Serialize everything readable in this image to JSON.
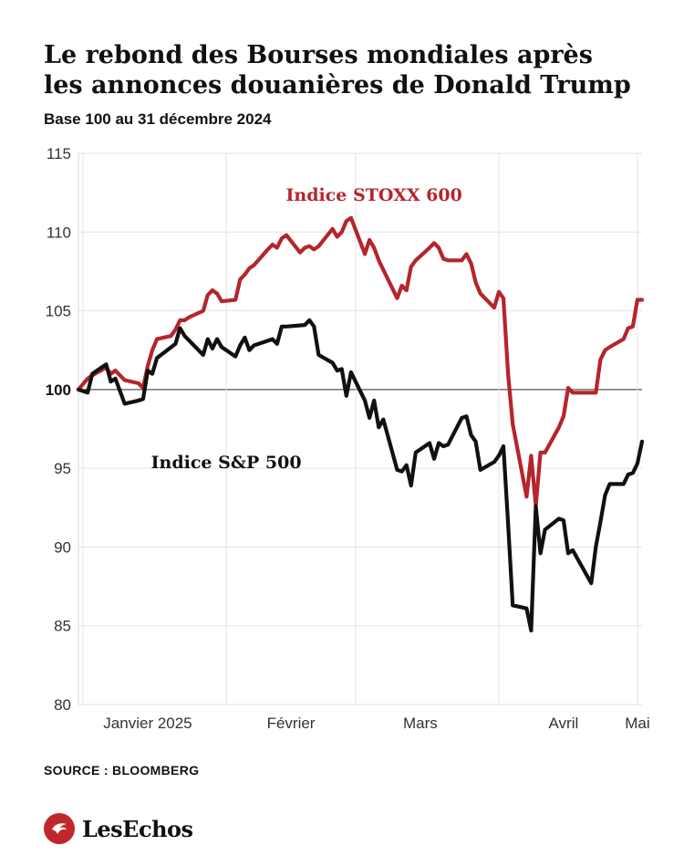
{
  "header": {
    "title_line1": "Le rebond des Bourses mondiales après",
    "title_line2": "les annonces douanières de Donald Trump",
    "subtitle": "Base 100 au 31 décembre 2024"
  },
  "footer": {
    "source": "SOURCE : BLOOMBERG",
    "logo_text": "LesEchos"
  },
  "chart_data": {
    "type": "line",
    "title": "Le rebond des Bourses mondiales après les annonces douanières de Donald Trump",
    "subtitle": "Base 100 au 31 décembre 2024",
    "xlabel": "",
    "ylabel": "",
    "ylim": [
      80,
      115
    ],
    "yticks": [
      80,
      85,
      90,
      95,
      100,
      105,
      110,
      115
    ],
    "baseline": 100,
    "x_range": [
      "2024-12-31",
      "2025-05-02"
    ],
    "month_ticks": [
      {
        "label": "Janvier 2025",
        "date": "2025-01-15"
      },
      {
        "label": "Février",
        "date": "2025-02-15"
      },
      {
        "label": "Mars",
        "date": "2025-03-15"
      },
      {
        "label": "Avril",
        "date": "2025-04-15"
      },
      {
        "label": "Mai",
        "date": "2025-05-01"
      }
    ],
    "month_separators": [
      "2025-01-01",
      "2025-02-01",
      "2025-03-01",
      "2025-04-01",
      "2025-05-01"
    ],
    "grid": true,
    "series": [
      {
        "name": "Indice STOXX 600",
        "color": "#b5252c",
        "points": [
          [
            "2024-12-31",
            100.0
          ],
          [
            "2025-01-02",
            100.7
          ],
          [
            "2025-01-03",
            100.9
          ],
          [
            "2025-01-06",
            101.4
          ],
          [
            "2025-01-07",
            101.0
          ],
          [
            "2025-01-08",
            101.2
          ],
          [
            "2025-01-09",
            100.9
          ],
          [
            "2025-01-10",
            100.6
          ],
          [
            "2025-01-13",
            100.4
          ],
          [
            "2025-01-14",
            100.1
          ],
          [
            "2025-01-15",
            101.5
          ],
          [
            "2025-01-16",
            102.5
          ],
          [
            "2025-01-17",
            103.2
          ],
          [
            "2025-01-20",
            103.4
          ],
          [
            "2025-01-21",
            103.8
          ],
          [
            "2025-01-22",
            104.4
          ],
          [
            "2025-01-23",
            104.4
          ],
          [
            "2025-01-24",
            104.6
          ],
          [
            "2025-01-27",
            105.0
          ],
          [
            "2025-01-28",
            106.0
          ],
          [
            "2025-01-29",
            106.3
          ],
          [
            "2025-01-30",
            106.1
          ],
          [
            "2025-01-31",
            105.6
          ],
          [
            "2025-02-03",
            105.7
          ],
          [
            "2025-02-04",
            107.0
          ],
          [
            "2025-02-05",
            107.3
          ],
          [
            "2025-02-06",
            107.7
          ],
          [
            "2025-02-07",
            107.9
          ],
          [
            "2025-02-10",
            108.9
          ],
          [
            "2025-02-11",
            109.2
          ],
          [
            "2025-02-12",
            109.0
          ],
          [
            "2025-02-13",
            109.6
          ],
          [
            "2025-02-14",
            109.8
          ],
          [
            "2025-02-17",
            108.7
          ],
          [
            "2025-02-18",
            109.0
          ],
          [
            "2025-02-19",
            109.1
          ],
          [
            "2025-02-20",
            108.9
          ],
          [
            "2025-02-21",
            109.1
          ],
          [
            "2025-02-24",
            110.2
          ],
          [
            "2025-02-25",
            109.7
          ],
          [
            "2025-02-26",
            110.0
          ],
          [
            "2025-02-27",
            110.7
          ],
          [
            "2025-02-28",
            110.9
          ],
          [
            "2025-03-03",
            108.6
          ],
          [
            "2025-03-04",
            109.5
          ],
          [
            "2025-03-05",
            109.0
          ],
          [
            "2025-03-06",
            108.2
          ],
          [
            "2025-03-07",
            107.6
          ],
          [
            "2025-03-10",
            105.8
          ],
          [
            "2025-03-11",
            106.6
          ],
          [
            "2025-03-12",
            106.3
          ],
          [
            "2025-03-13",
            107.8
          ],
          [
            "2025-03-14",
            108.2
          ],
          [
            "2025-03-17",
            109.0
          ],
          [
            "2025-03-18",
            109.3
          ],
          [
            "2025-03-19",
            109.0
          ],
          [
            "2025-03-20",
            108.3
          ],
          [
            "2025-03-21",
            108.2
          ],
          [
            "2025-03-24",
            108.2
          ],
          [
            "2025-03-25",
            108.6
          ],
          [
            "2025-03-26",
            108.0
          ],
          [
            "2025-03-27",
            106.8
          ],
          [
            "2025-03-28",
            106.1
          ],
          [
            "2025-03-31",
            105.2
          ],
          [
            "2025-04-01",
            106.2
          ],
          [
            "2025-04-02",
            105.8
          ],
          [
            "2025-04-03",
            101.0
          ],
          [
            "2025-04-04",
            97.8
          ],
          [
            "2025-04-07",
            93.2
          ],
          [
            "2025-04-08",
            95.8
          ],
          [
            "2025-04-09",
            92.6
          ],
          [
            "2025-04-10",
            96.0
          ],
          [
            "2025-04-11",
            96.0
          ],
          [
            "2025-04-14",
            97.6
          ],
          [
            "2025-04-15",
            98.3
          ],
          [
            "2025-04-16",
            100.1
          ],
          [
            "2025-04-17",
            99.8
          ],
          [
            "2025-04-22",
            99.8
          ],
          [
            "2025-04-23",
            101.9
          ],
          [
            "2025-04-24",
            102.5
          ],
          [
            "2025-04-25",
            102.7
          ],
          [
            "2025-04-28",
            103.2
          ],
          [
            "2025-04-29",
            103.9
          ],
          [
            "2025-04-30",
            104.0
          ],
          [
            "2025-05-01",
            105.7
          ],
          [
            "2025-05-02",
            105.7
          ]
        ]
      },
      {
        "name": "Indice S&P 500",
        "color": "#111111",
        "points": [
          [
            "2024-12-31",
            100.0
          ],
          [
            "2025-01-02",
            99.8
          ],
          [
            "2025-01-03",
            101.0
          ],
          [
            "2025-01-06",
            101.6
          ],
          [
            "2025-01-07",
            100.5
          ],
          [
            "2025-01-08",
            100.7
          ],
          [
            "2025-01-10",
            99.1
          ],
          [
            "2025-01-13",
            99.3
          ],
          [
            "2025-01-14",
            99.4
          ],
          [
            "2025-01-15",
            101.2
          ],
          [
            "2025-01-16",
            101.0
          ],
          [
            "2025-01-17",
            102.0
          ],
          [
            "2025-01-21",
            102.9
          ],
          [
            "2025-01-22",
            103.9
          ],
          [
            "2025-01-23",
            103.4
          ],
          [
            "2025-01-24",
            103.1
          ],
          [
            "2025-01-27",
            102.2
          ],
          [
            "2025-01-28",
            103.2
          ],
          [
            "2025-01-29",
            102.6
          ],
          [
            "2025-01-30",
            103.2
          ],
          [
            "2025-01-31",
            102.7
          ],
          [
            "2025-02-03",
            102.1
          ],
          [
            "2025-02-04",
            102.8
          ],
          [
            "2025-02-05",
            103.3
          ],
          [
            "2025-02-06",
            102.5
          ],
          [
            "2025-02-07",
            102.8
          ],
          [
            "2025-02-10",
            103.1
          ],
          [
            "2025-02-11",
            103.2
          ],
          [
            "2025-02-12",
            102.9
          ],
          [
            "2025-02-13",
            104.0
          ],
          [
            "2025-02-14",
            104.0
          ],
          [
            "2025-02-18",
            104.1
          ],
          [
            "2025-02-19",
            104.4
          ],
          [
            "2025-02-20",
            104.0
          ],
          [
            "2025-02-21",
            102.2
          ],
          [
            "2025-02-24",
            101.7
          ],
          [
            "2025-02-25",
            101.2
          ],
          [
            "2025-02-26",
            101.3
          ],
          [
            "2025-02-27",
            99.6
          ],
          [
            "2025-02-28",
            101.1
          ],
          [
            "2025-03-03",
            99.3
          ],
          [
            "2025-03-04",
            98.2
          ],
          [
            "2025-03-05",
            99.3
          ],
          [
            "2025-03-06",
            97.6
          ],
          [
            "2025-03-07",
            98.1
          ],
          [
            "2025-03-10",
            94.9
          ],
          [
            "2025-03-11",
            94.8
          ],
          [
            "2025-03-12",
            95.2
          ],
          [
            "2025-03-13",
            93.9
          ],
          [
            "2025-03-14",
            96.0
          ],
          [
            "2025-03-17",
            96.6
          ],
          [
            "2025-03-18",
            95.6
          ],
          [
            "2025-03-19",
            96.6
          ],
          [
            "2025-03-20",
            96.4
          ],
          [
            "2025-03-21",
            96.5
          ],
          [
            "2025-03-24",
            98.2
          ],
          [
            "2025-03-25",
            98.3
          ],
          [
            "2025-03-26",
            97.1
          ],
          [
            "2025-03-27",
            96.7
          ],
          [
            "2025-03-28",
            94.9
          ],
          [
            "2025-03-31",
            95.4
          ],
          [
            "2025-04-01",
            95.8
          ],
          [
            "2025-04-02",
            96.4
          ],
          [
            "2025-04-03",
            91.5
          ],
          [
            "2025-04-04",
            86.3
          ],
          [
            "2025-04-07",
            86.1
          ],
          [
            "2025-04-08",
            84.7
          ],
          [
            "2025-04-09",
            92.6
          ],
          [
            "2025-04-10",
            89.6
          ],
          [
            "2025-04-11",
            91.1
          ],
          [
            "2025-04-14",
            91.8
          ],
          [
            "2025-04-15",
            91.7
          ],
          [
            "2025-04-16",
            89.6
          ],
          [
            "2025-04-17",
            89.8
          ],
          [
            "2025-04-21",
            87.7
          ],
          [
            "2025-04-22",
            90.0
          ],
          [
            "2025-04-23",
            91.6
          ],
          [
            "2025-04-24",
            93.3
          ],
          [
            "2025-04-25",
            94.0
          ],
          [
            "2025-04-28",
            94.0
          ],
          [
            "2025-04-29",
            94.6
          ],
          [
            "2025-04-30",
            94.7
          ],
          [
            "2025-05-01",
            95.3
          ],
          [
            "2025-05-02",
            96.7
          ]
        ]
      }
    ]
  }
}
